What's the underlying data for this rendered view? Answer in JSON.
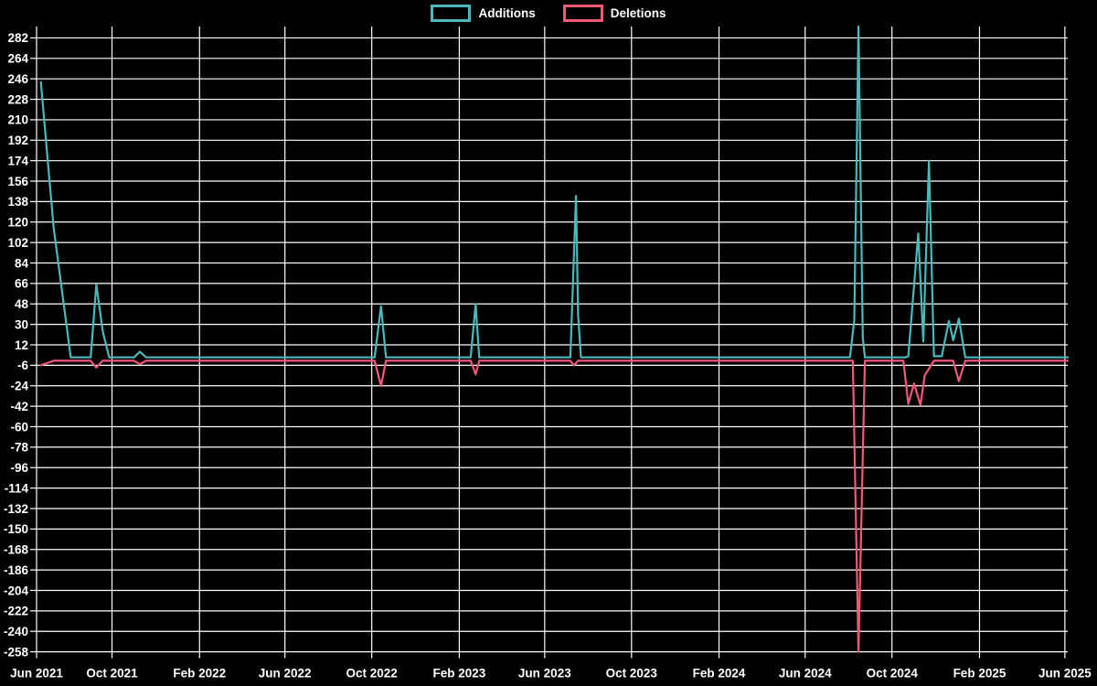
{
  "page": {
    "background": "#000000",
    "text_color": "#ffffff",
    "grid_color": "#ffffff"
  },
  "chart_data": {
    "type": "line",
    "title": "",
    "legend_position": "top",
    "grid": true,
    "x_domain": [
      "2021-06-17",
      "2025-06-05"
    ],
    "y_axis": {
      "min": -258,
      "max": 292,
      "tick_min": -258,
      "tick_max": 282,
      "tick_step": 18
    },
    "x_ticks": [
      {
        "label": "Jun 2021",
        "date": "2021-06-17"
      },
      {
        "label": "Oct 2021",
        "date": "2021-10-01"
      },
      {
        "label": "Feb 2022",
        "date": "2022-02-01"
      },
      {
        "label": "Jun 2022",
        "date": "2022-06-01"
      },
      {
        "label": "Oct 2022",
        "date": "2022-10-01"
      },
      {
        "label": "Feb 2023",
        "date": "2023-02-01"
      },
      {
        "label": "Jun 2023",
        "date": "2023-06-01"
      },
      {
        "label": "Oct 2023",
        "date": "2023-10-01"
      },
      {
        "label": "Feb 2024",
        "date": "2024-02-01"
      },
      {
        "label": "Jun 2024",
        "date": "2024-06-01"
      },
      {
        "label": "Oct 2024",
        "date": "2024-10-01"
      },
      {
        "label": "Feb 2025",
        "date": "2025-02-01"
      },
      {
        "label": "Jun 2025",
        "date": "2025-06-01"
      }
    ],
    "series": [
      {
        "name": "Additions",
        "color": "#4ab9b9",
        "points": [
          [
            "2021-06-23",
            243
          ],
          [
            "2021-07-11",
            115
          ],
          [
            "2021-08-04",
            1
          ],
          [
            "2021-09-01",
            1
          ],
          [
            "2021-09-09",
            65
          ],
          [
            "2021-09-18",
            24
          ],
          [
            "2021-09-27",
            1
          ],
          [
            "2021-11-01",
            1
          ],
          [
            "2021-11-09",
            6
          ],
          [
            "2021-11-18",
            1
          ],
          [
            "2022-10-05",
            1
          ],
          [
            "2022-10-14",
            46
          ],
          [
            "2022-10-21",
            1
          ],
          [
            "2023-02-17",
            1
          ],
          [
            "2023-02-24",
            48
          ],
          [
            "2023-03-01",
            1
          ],
          [
            "2023-07-07",
            1
          ],
          [
            "2023-07-15",
            143
          ],
          [
            "2023-07-18",
            38
          ],
          [
            "2023-07-22",
            1
          ],
          [
            "2024-08-03",
            1
          ],
          [
            "2024-08-09",
            34
          ],
          [
            "2024-08-15",
            292
          ],
          [
            "2024-08-21",
            18
          ],
          [
            "2024-08-24",
            1
          ],
          [
            "2024-10-20",
            1
          ],
          [
            "2024-10-24",
            2
          ],
          [
            "2024-11-07",
            110
          ],
          [
            "2024-11-14",
            15
          ],
          [
            "2024-11-20",
            133
          ],
          [
            "2024-11-22",
            174
          ],
          [
            "2024-11-29",
            2
          ],
          [
            "2024-12-10",
            2
          ],
          [
            "2024-12-20",
            33
          ],
          [
            "2024-12-26",
            16
          ],
          [
            "2025-01-03",
            35
          ],
          [
            "2025-01-12",
            1
          ],
          [
            "2025-06-05",
            1
          ]
        ]
      },
      {
        "name": "Deletions",
        "color": "#f2587a",
        "points": [
          [
            "2021-06-23",
            -6
          ],
          [
            "2021-07-11",
            -2
          ],
          [
            "2021-09-01",
            -2
          ],
          [
            "2021-09-09",
            -8
          ],
          [
            "2021-09-18",
            -2
          ],
          [
            "2021-11-01",
            -2
          ],
          [
            "2021-11-09",
            -5
          ],
          [
            "2021-11-18",
            -2
          ],
          [
            "2022-10-05",
            -2
          ],
          [
            "2022-10-14",
            -24
          ],
          [
            "2022-10-21",
            -2
          ],
          [
            "2023-02-17",
            -2
          ],
          [
            "2023-02-24",
            -14
          ],
          [
            "2023-03-01",
            -2
          ],
          [
            "2023-07-07",
            -2
          ],
          [
            "2023-07-12",
            -6
          ],
          [
            "2023-07-18",
            -2
          ],
          [
            "2024-08-07",
            -2
          ],
          [
            "2024-08-15",
            -258
          ],
          [
            "2024-08-24",
            -2
          ],
          [
            "2024-10-17",
            -2
          ],
          [
            "2024-10-24",
            -40
          ],
          [
            "2024-11-01",
            -22
          ],
          [
            "2024-11-10",
            -41
          ],
          [
            "2024-11-16",
            -15
          ],
          [
            "2024-11-29",
            -2
          ],
          [
            "2024-12-26",
            -2
          ],
          [
            "2025-01-03",
            -20
          ],
          [
            "2025-01-12",
            -2
          ],
          [
            "2025-06-05",
            -2
          ]
        ]
      }
    ]
  }
}
